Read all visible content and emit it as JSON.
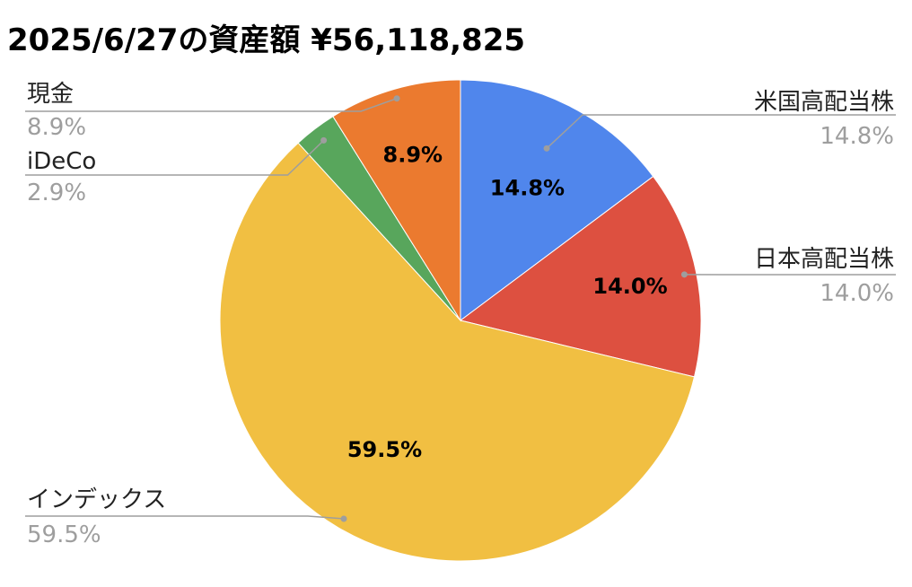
{
  "chart_data": {
    "type": "pie",
    "title": "2025/6/27の資産額 ¥56,118,825",
    "slices": [
      {
        "label": "米国高配当株",
        "value": 14.8,
        "display": "14.8%",
        "color": "#5086ec"
      },
      {
        "label": "日本高配当株",
        "value": 14.0,
        "display": "14.0%",
        "color": "#dd5040"
      },
      {
        "label": "インデックス",
        "value": 59.5,
        "display": "59.5%",
        "color": "#f1bf42"
      },
      {
        "label": "iDeCo",
        "value": 2.9,
        "display": "2.9%",
        "color": "#58a65c"
      },
      {
        "label": "現金",
        "value": 8.9,
        "display": "8.9%",
        "color": "#eb7a2f"
      }
    ],
    "legend": "leader-labels"
  }
}
